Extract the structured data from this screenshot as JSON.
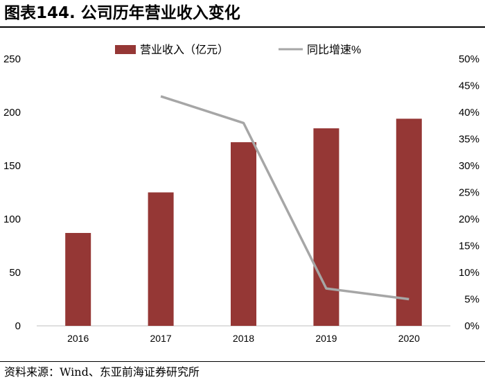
{
  "title": "图表144. 公司历年营业收入变化",
  "source": "资料来源：Wind、东亚前海证券研究所",
  "chart_data": {
    "type": "bar",
    "categories": [
      "2016",
      "2017",
      "2018",
      "2019",
      "2020"
    ],
    "series": [
      {
        "name": "营业收入（亿元）",
        "type": "bar",
        "axis": "left",
        "values": [
          87,
          125,
          172,
          185,
          194
        ],
        "color": "#953735"
      },
      {
        "name": "同比增速%",
        "type": "line",
        "axis": "right",
        "values": [
          null,
          0.43,
          0.38,
          0.07,
          0.05
        ],
        "color": "#A6A6A6"
      }
    ],
    "y_left": {
      "min": 0,
      "max": 250,
      "step": 50,
      "ticks": [
        "0",
        "50",
        "100",
        "150",
        "200",
        "250"
      ]
    },
    "y_right": {
      "min": 0,
      "max": 0.5,
      "step": 0.05,
      "ticks": [
        "0%",
        "5%",
        "10%",
        "15%",
        "20%",
        "25%",
        "30%",
        "35%",
        "40%",
        "45%",
        "50%"
      ]
    },
    "grid": false,
    "legend_position": "top-center"
  }
}
